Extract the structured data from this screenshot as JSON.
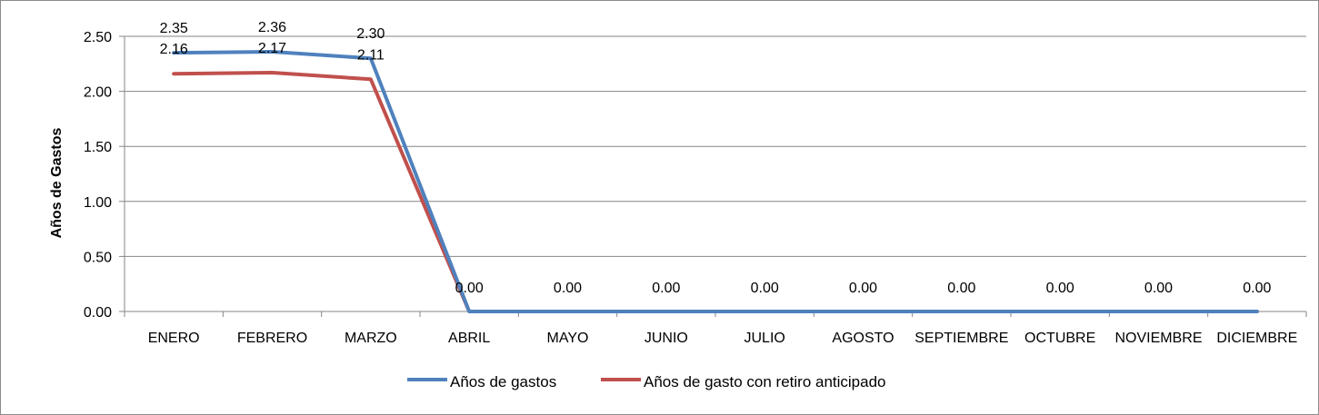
{
  "chart_data": {
    "type": "line",
    "title": "",
    "xlabel": "",
    "ylabel": "Años de Gastos",
    "ylim": [
      0,
      2.5
    ],
    "yticks": [
      "0.00",
      "0.50",
      "1.00",
      "1.50",
      "2.00",
      "2.50"
    ],
    "grid": true,
    "legend_position": "bottom",
    "categories": [
      "ENERO",
      "FEBRERO",
      "MARZO",
      "ABRIL",
      "MAYO",
      "JUNIO",
      "JULIO",
      "AGOSTO",
      "SEPTIEMBRE",
      "OCTUBRE",
      "NOVIEMBRE",
      "DICIEMBRE"
    ],
    "series": [
      {
        "name": "Años de gastos",
        "color": "#4f81bd",
        "values": [
          2.35,
          2.36,
          2.3,
          0,
          0,
          0,
          0,
          0,
          0,
          0,
          0,
          0
        ],
        "labels": [
          "2.35",
          "2.36",
          "2.30",
          "0.00",
          "0.00",
          "0.00",
          "0.00",
          "0.00",
          "0.00",
          "0.00",
          "0.00",
          "0.00"
        ]
      },
      {
        "name": "Años de gasto con retiro anticipado",
        "color": "#c0504d",
        "values": [
          2.16,
          2.17,
          2.11,
          0,
          0,
          0,
          0,
          0,
          0,
          0,
          0,
          0
        ],
        "labels": [
          "2.16",
          "2.17",
          "2.11",
          "",
          "",
          "",
          "",
          "",
          "",
          "",
          "",
          ""
        ]
      }
    ]
  }
}
